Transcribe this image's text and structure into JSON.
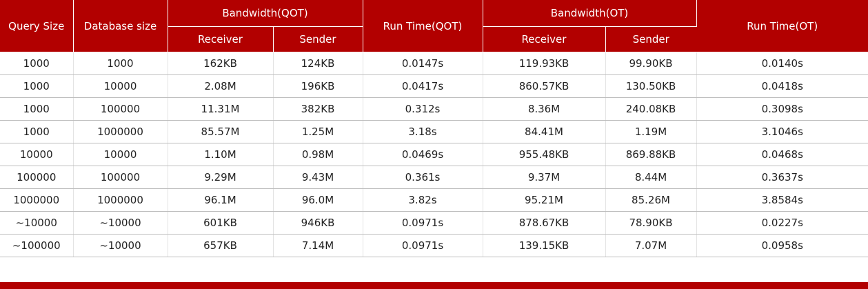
{
  "header": {
    "query_size": "Query Size",
    "database_size": "Database size",
    "bandwidth_qot": "Bandwidth(QOT)",
    "run_time_qot": "Run Time(QOT)",
    "bandwidth_ot": "Bandwidth(OT)",
    "run_time_ot": "Run Time(OT)",
    "receiver_qot": "Receiver",
    "sender_qot": "Sender",
    "receiver_ot": "Receiver",
    "sender_ot": "Sender"
  },
  "rows": [
    [
      "1000",
      "1000",
      "162KB",
      "124KB",
      "0.0147s",
      "119.93KB",
      "99.90KB",
      "0.0140s"
    ],
    [
      "1000",
      "10000",
      "2.08M",
      "196KB",
      "0.0417s",
      "860.57KB",
      "130.50KB",
      "0.0418s"
    ],
    [
      "1000",
      "100000",
      "11.31M",
      "382KB",
      "0.312s",
      "8.36M",
      "240.08KB",
      "0.3098s"
    ],
    [
      "1000",
      "1000000",
      "85.57M",
      "1.25M",
      "3.18s",
      "84.41M",
      "1.19M",
      "3.1046s"
    ],
    [
      "10000",
      "10000",
      "1.10M",
      "0.98M",
      "0.0469s",
      "955.48KB",
      "869.88KB",
      "0.0468s"
    ],
    [
      "100000",
      "100000",
      "9.29M",
      "9.43M",
      "0.361s",
      "9.37M",
      "8.44M",
      "0.3637s"
    ],
    [
      "1000000",
      "1000000",
      "96.1M",
      "96.0M",
      "3.82s",
      "95.21M",
      "85.26M",
      "3.8584s"
    ],
    [
      "~10000",
      "~10000",
      "601KB",
      "946KB",
      "0.0971s",
      "878.67KB",
      "78.90KB",
      "0.0227s"
    ],
    [
      "~100000",
      "~10000",
      "657KB",
      "7.14M",
      "0.0971s",
      "139.15KB",
      "7.07M",
      "0.0958s"
    ]
  ],
  "colors": {
    "header_bg": "#b20000",
    "header_text": "#ffffff"
  }
}
